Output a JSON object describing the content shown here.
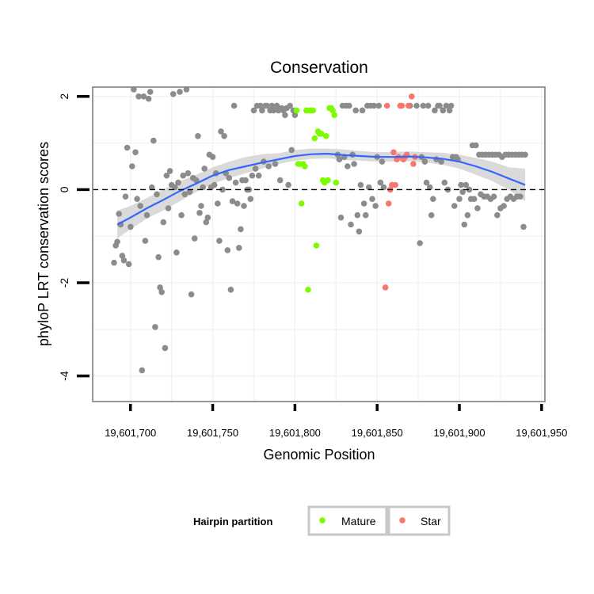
{
  "chart_data": {
    "type": "scatter",
    "title": "Conservation",
    "xlabel": "Genomic Position",
    "ylabel": "phyloP LRT conservation scores",
    "xlim": [
      19601677,
      19601952
    ],
    "ylim": [
      -4.55,
      2.2
    ],
    "x_ticks": [
      19601700,
      19601750,
      19601800,
      19601850,
      19601900,
      19601950
    ],
    "x_tick_labels": [
      "19,601,700",
      "19,601,750",
      "19,601,800",
      "19,601,850",
      "19,601,900",
      "19,601,950"
    ],
    "y_ticks": [
      -4,
      -2,
      0,
      2
    ],
    "y_tick_labels": [
      "-4",
      "-2",
      "0",
      "2"
    ],
    "reference_line_y": 0,
    "grid": true,
    "legend": {
      "title": "Hairpin partition",
      "placement": "bottom",
      "entries": [
        {
          "label": "Mature",
          "color": "#7cfc00"
        },
        {
          "label": "Star",
          "color": "#f8766d"
        }
      ]
    },
    "colors": {
      "other": "#8c8c8c",
      "mature": "#7cfc00",
      "star": "#f8766d",
      "smooth": "#3366ff",
      "ribbon": "#d6d6d6",
      "panel_border": "#7f7f7f",
      "grid": "#f2f2f2"
    },
    "series": [
      {
        "key": "other",
        "points": [
          [
            19601690,
            -1.57
          ],
          [
            19601691,
            -1.2
          ],
          [
            19601692,
            -1.12
          ],
          [
            19601693,
            -0.52
          ],
          [
            19601694,
            -0.75
          ],
          [
            19601695,
            -1.42
          ],
          [
            19601696,
            -1.52
          ],
          [
            19601697,
            -0.15
          ],
          [
            19601698,
            0.9
          ],
          [
            19601699,
            -1.6
          ],
          [
            19601700,
            -0.8
          ],
          [
            19601701,
            0.5
          ],
          [
            19601702,
            2.15
          ],
          [
            19601703,
            0.8
          ],
          [
            19601704,
            -0.2
          ],
          [
            19601705,
            2.0
          ],
          [
            19601706,
            -0.35
          ],
          [
            19601707,
            -3.88
          ],
          [
            19601708,
            2.0
          ],
          [
            19601709,
            -1.1
          ],
          [
            19601710,
            -0.55
          ],
          [
            19601711,
            1.95
          ],
          [
            19601712,
            2.1
          ],
          [
            19601713,
            0.05
          ],
          [
            19601714,
            1.05
          ],
          [
            19601715,
            -2.95
          ],
          [
            19601716,
            -0.1
          ],
          [
            19601717,
            -1.45
          ],
          [
            19601718,
            -2.1
          ],
          [
            19601719,
            -2.2
          ],
          [
            19601720,
            -0.7
          ],
          [
            19601721,
            -3.4
          ],
          [
            19601722,
            0.3
          ],
          [
            19601723,
            -0.4
          ],
          [
            19601724,
            0.4
          ],
          [
            19601725,
            0.1
          ],
          [
            19601726,
            2.05
          ],
          [
            19601727,
            0.05
          ],
          [
            19601728,
            -1.35
          ],
          [
            19601729,
            0.15
          ],
          [
            19601730,
            2.1
          ],
          [
            19601731,
            -0.55
          ],
          [
            19601732,
            0.3
          ],
          [
            19601733,
            -0.1
          ],
          [
            19601734,
            2.15
          ],
          [
            19601735,
            0.35
          ],
          [
            19601736,
            -0.05
          ],
          [
            19601737,
            -2.25
          ],
          [
            19601738,
            0.25
          ],
          [
            19601739,
            -1.05
          ],
          [
            19601740,
            0.2
          ],
          [
            19601741,
            1.15
          ],
          [
            19601742,
            -0.5
          ],
          [
            19601743,
            -0.35
          ],
          [
            19601744,
            0.05
          ],
          [
            19601745,
            0.45
          ],
          [
            19601746,
            -0.7
          ],
          [
            19601747,
            -0.6
          ],
          [
            19601748,
            0.75
          ],
          [
            19601749,
            0.05
          ],
          [
            19601750,
            0.7
          ],
          [
            19601751,
            0.1
          ],
          [
            19601752,
            0.35
          ],
          [
            19601753,
            -0.3
          ],
          [
            19601754,
            -1.1
          ],
          [
            19601755,
            1.25
          ],
          [
            19601756,
            0.0
          ],
          [
            19601757,
            1.15
          ],
          [
            19601758,
            0.35
          ],
          [
            19601759,
            -1.3
          ],
          [
            19601760,
            0.25
          ],
          [
            19601761,
            -2.15
          ],
          [
            19601762,
            -0.25
          ],
          [
            19601763,
            1.8
          ],
          [
            19601764,
            0.15
          ],
          [
            19601765,
            -0.3
          ],
          [
            19601766,
            -1.25
          ],
          [
            19601767,
            -0.85
          ],
          [
            19601768,
            0.2
          ],
          [
            19601769,
            -0.35
          ],
          [
            19601770,
            0.2
          ],
          [
            19601771,
            0.0
          ],
          [
            19601772,
            0.0
          ],
          [
            19601773,
            -0.2
          ],
          [
            19601774,
            0.3
          ],
          [
            19601775,
            1.7
          ],
          [
            19601776,
            0.45
          ],
          [
            19601777,
            1.8
          ],
          [
            19601778,
            0.3
          ],
          [
            19601779,
            1.8
          ],
          [
            19601780,
            1.7
          ],
          [
            19601781,
            0.6
          ],
          [
            19601782,
            1.8
          ],
          [
            19601783,
            1.8
          ],
          [
            19601784,
            0.5
          ],
          [
            19601785,
            1.7
          ],
          [
            19601786,
            1.8
          ],
          [
            19601787,
            1.7
          ],
          [
            19601788,
            0.55
          ],
          [
            19601789,
            1.8
          ],
          [
            19601790,
            1.7
          ],
          [
            19601791,
            0.2
          ],
          [
            19601792,
            1.75
          ],
          [
            19601793,
            1.7
          ],
          [
            19601794,
            1.6
          ],
          [
            19601795,
            1.75
          ],
          [
            19601796,
            0.1
          ],
          [
            19601797,
            1.8
          ],
          [
            19601798,
            0.85
          ],
          [
            19601799,
            1.7
          ],
          [
            19601800,
            1.6
          ],
          [
            19601826,
            0.75
          ],
          [
            19601827,
            0.65
          ],
          [
            19601828,
            -0.6
          ],
          [
            19601829,
            1.8
          ],
          [
            19601830,
            0.7
          ],
          [
            19601831,
            1.8
          ],
          [
            19601832,
            0.5
          ],
          [
            19601833,
            1.8
          ],
          [
            19601834,
            -0.75
          ],
          [
            19601835,
            0.75
          ],
          [
            19601836,
            0.55
          ],
          [
            19601837,
            1.7
          ],
          [
            19601838,
            -0.55
          ],
          [
            19601839,
            -0.9
          ],
          [
            19601840,
            0.1
          ],
          [
            19601841,
            1.7
          ],
          [
            19601842,
            -0.3
          ],
          [
            19601843,
            -0.55
          ],
          [
            19601844,
            1.8
          ],
          [
            19601845,
            0.05
          ],
          [
            19601846,
            1.8
          ],
          [
            19601847,
            -0.2
          ],
          [
            19601848,
            1.8
          ],
          [
            19601849,
            -0.35
          ],
          [
            19601850,
            0.7
          ],
          [
            19601851,
            1.8
          ],
          [
            19601852,
            0.15
          ],
          [
            19601853,
            0.6
          ],
          [
            19601854,
            0.05
          ],
          [
            19601876,
            -1.15
          ],
          [
            19601877,
            0.7
          ],
          [
            19601878,
            1.8
          ],
          [
            19601879,
            0.6
          ],
          [
            19601880,
            0.15
          ],
          [
            19601881,
            1.8
          ],
          [
            19601882,
            0.05
          ],
          [
            19601883,
            -0.55
          ],
          [
            19601884,
            -0.2
          ],
          [
            19601885,
            1.7
          ],
          [
            19601886,
            0.65
          ],
          [
            19601887,
            1.8
          ],
          [
            19601888,
            1.8
          ],
          [
            19601889,
            0.6
          ],
          [
            19601890,
            1.7
          ],
          [
            19601891,
            0.15
          ],
          [
            19601892,
            1.8
          ],
          [
            19601893,
            0.0
          ],
          [
            19601894,
            1.7
          ],
          [
            19601895,
            1.8
          ],
          [
            19601896,
            0.7
          ],
          [
            19601897,
            -0.35
          ],
          [
            19601898,
            0.7
          ],
          [
            19601899,
            0.65
          ],
          [
            19601900,
            -0.2
          ],
          [
            19601901,
            0.1
          ],
          [
            19601902,
            -0.05
          ],
          [
            19601903,
            -0.75
          ],
          [
            19601904,
            0.1
          ],
          [
            19601905,
            -0.55
          ],
          [
            19601906,
            0.0
          ],
          [
            19601907,
            -0.2
          ],
          [
            19601908,
            0.95
          ],
          [
            19601909,
            -0.2
          ],
          [
            19601910,
            0.95
          ],
          [
            19601911,
            -0.4
          ],
          [
            19601912,
            0.75
          ],
          [
            19601913,
            -0.1
          ],
          [
            19601914,
            0.75
          ],
          [
            19601915,
            -0.15
          ],
          [
            19601916,
            0.75
          ],
          [
            19601917,
            -0.15
          ],
          [
            19601918,
            0.75
          ],
          [
            19601919,
            -0.2
          ],
          [
            19601920,
            0.75
          ],
          [
            19601921,
            -0.15
          ],
          [
            19601922,
            0.75
          ],
          [
            19601923,
            -0.55
          ],
          [
            19601924,
            0.75
          ],
          [
            19601925,
            -0.4
          ],
          [
            19601926,
            0.7
          ],
          [
            19601927,
            -0.35
          ],
          [
            19601928,
            0.75
          ],
          [
            19601929,
            -0.2
          ],
          [
            19601930,
            0.75
          ],
          [
            19601931,
            -0.15
          ],
          [
            19601932,
            0.75
          ],
          [
            19601933,
            -0.2
          ],
          [
            19601934,
            0.75
          ],
          [
            19601935,
            -0.15
          ],
          [
            19601936,
            0.75
          ],
          [
            19601937,
            -0.15
          ],
          [
            19601938,
            0.75
          ],
          [
            19601939,
            -0.8
          ],
          [
            19601940,
            0.75
          ],
          [
            19601870,
            1.8
          ],
          [
            19601874,
            1.8
          ]
        ]
      },
      {
        "key": "mature",
        "points": [
          [
            19601801,
            1.7
          ],
          [
            19601802,
            0.55
          ],
          [
            19601803,
            0.55
          ],
          [
            19601804,
            -0.3
          ],
          [
            19601805,
            0.55
          ],
          [
            19601806,
            0.5
          ],
          [
            19601807,
            1.7
          ],
          [
            19601808,
            -2.15
          ],
          [
            19601809,
            1.7
          ],
          [
            19601810,
            1.7
          ],
          [
            19601811,
            1.7
          ],
          [
            19601812,
            1.1
          ],
          [
            19601813,
            -1.2
          ],
          [
            19601814,
            1.25
          ],
          [
            19601815,
            1.2
          ],
          [
            19601816,
            1.2
          ],
          [
            19601817,
            0.2
          ],
          [
            19601818,
            0.15
          ],
          [
            19601819,
            1.15
          ],
          [
            19601820,
            0.2
          ],
          [
            19601821,
            1.75
          ],
          [
            19601822,
            1.75
          ],
          [
            19601823,
            1.7
          ],
          [
            19601824,
            1.6
          ],
          [
            19601825,
            0.15
          ]
        ]
      },
      {
        "key": "star",
        "points": [
          [
            19601855,
            -2.1
          ],
          [
            19601856,
            1.8
          ],
          [
            19601857,
            -0.3
          ],
          [
            19601858,
            0.0
          ],
          [
            19601859,
            0.1
          ],
          [
            19601860,
            0.8
          ],
          [
            19601861,
            0.1
          ],
          [
            19601862,
            0.65
          ],
          [
            19601863,
            0.7
          ],
          [
            19601864,
            1.8
          ],
          [
            19601865,
            1.8
          ],
          [
            19601866,
            0.65
          ],
          [
            19601867,
            0.7
          ],
          [
            19601868,
            0.75
          ],
          [
            19601869,
            1.8
          ],
          [
            19601871,
            2.0
          ],
          [
            19601872,
            0.55
          ],
          [
            19601873,
            0.7
          ]
        ]
      }
    ],
    "smooth": {
      "x": [
        19601692,
        19601700,
        19601710,
        19601720,
        19601730,
        19601740,
        19601750,
        19601760,
        19601770,
        19601780,
        19601790,
        19601800,
        19601810,
        19601820,
        19601830,
        19601840,
        19601850,
        19601860,
        19601870,
        19601880,
        19601890,
        19601900,
        19601910,
        19601920,
        19601930,
        19601940
      ],
      "y": [
        -0.75,
        -0.6,
        -0.4,
        -0.22,
        -0.03,
        0.13,
        0.3,
        0.42,
        0.5,
        0.58,
        0.65,
        0.72,
        0.76,
        0.77,
        0.74,
        0.72,
        0.7,
        0.7,
        0.71,
        0.69,
        0.66,
        0.6,
        0.5,
        0.38,
        0.24,
        0.1
      ],
      "lo": [
        -1.05,
        -0.85,
        -0.62,
        -0.45,
        -0.25,
        -0.05,
        0.12,
        0.25,
        0.35,
        0.45,
        0.55,
        0.62,
        0.66,
        0.67,
        0.63,
        0.62,
        0.6,
        0.6,
        0.61,
        0.58,
        0.53,
        0.45,
        0.32,
        0.18,
        0.0,
        -0.25
      ],
      "hi": [
        -0.45,
        -0.35,
        -0.18,
        0.0,
        0.18,
        0.32,
        0.48,
        0.6,
        0.7,
        0.76,
        0.78,
        0.85,
        0.88,
        0.88,
        0.86,
        0.83,
        0.8,
        0.81,
        0.82,
        0.8,
        0.79,
        0.75,
        0.68,
        0.6,
        0.48,
        0.45
      ]
    }
  }
}
